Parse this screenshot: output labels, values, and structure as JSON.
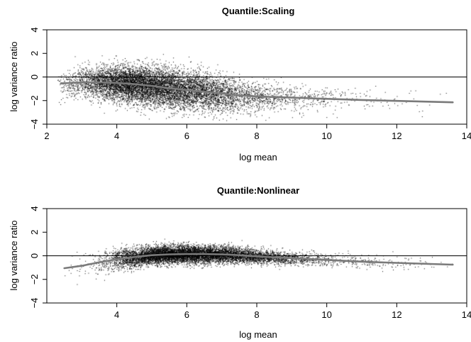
{
  "chart_data": [
    {
      "type": "scatter",
      "title": "Quantile:Scaling",
      "xlabel": "log mean",
      "ylabel": "log variance ratio",
      "xlim": [
        2,
        14
      ],
      "ylim": [
        -4,
        4
      ],
      "xticks": [
        "2",
        "4",
        "6",
        "8",
        "10",
        "12",
        "14"
      ],
      "yticks": [
        "4",
        "2",
        "0",
        "-2",
        "-4"
      ],
      "reference_line_y": 0,
      "point_color": "#000000",
      "trend_color": "#7a7a7a",
      "series": [
        {
          "trend": {
            "x": [
              2.4,
              3.0,
              3.5,
              4.0,
              4.5,
              5.0,
              5.5,
              6.0,
              6.5,
              7.0,
              7.5,
              8.0,
              9.0,
              10.0,
              11.0,
              12.0,
              13.6
            ],
            "y": [
              -0.55,
              -0.45,
              -0.45,
              -0.5,
              -0.6,
              -0.75,
              -0.95,
              -1.1,
              -1.25,
              -1.4,
              -1.55,
              -1.65,
              -1.75,
              -1.85,
              -1.95,
              -2.03,
              -2.15
            ]
          },
          "point_density": {
            "x_range": [
              2.3,
              13.6
            ],
            "peak_x": 4.5,
            "approx_points": 9000,
            "spread_sd": {
              "x": [
                2.4,
                3.0,
                4.0,
                5.0,
                6.0,
                7.0,
                8.0,
                9.0,
                10.0,
                12.0,
                13.6
              ],
              "sd": [
                0.55,
                0.65,
                0.75,
                0.8,
                0.85,
                0.8,
                0.65,
                0.55,
                0.5,
                0.45,
                0.45
              ]
            }
          }
        }
      ]
    },
    {
      "type": "scatter",
      "title": "Quantile:Nonlinear",
      "xlabel": "log mean",
      "ylabel": "log variance ratio",
      "xlim": [
        2,
        14
      ],
      "ylim": [
        -4,
        4
      ],
      "xticks": [
        "4",
        "6",
        "8",
        "10",
        "12",
        "14"
      ],
      "yticks": [
        "4",
        "2",
        "0",
        "-2",
        "-4"
      ],
      "reference_line_y": 0,
      "point_color": "#000000",
      "trend_color": "#7a7a7a",
      "series": [
        {
          "trend": {
            "x": [
              2.5,
              3.0,
              3.5,
              4.0,
              4.5,
              5.0,
              5.5,
              6.0,
              6.5,
              7.0,
              7.5,
              8.0,
              9.0,
              10.0,
              11.0,
              12.0,
              13.6
            ],
            "y": [
              -1.05,
              -0.85,
              -0.55,
              -0.3,
              -0.1,
              0.05,
              0.12,
              0.15,
              0.15,
              0.12,
              0.05,
              -0.05,
              -0.2,
              -0.35,
              -0.5,
              -0.6,
              -0.75
            ]
          },
          "point_density": {
            "x_range": [
              2.5,
              13.6
            ],
            "peak_x": 5.5,
            "approx_points": 9000,
            "spread_sd": {
              "x": [
                2.5,
                3.0,
                4.0,
                5.0,
                6.0,
                7.0,
                8.0,
                9.0,
                10.0,
                12.0,
                13.6
              ],
              "sd": [
                0.7,
                0.6,
                0.45,
                0.38,
                0.38,
                0.35,
                0.3,
                0.28,
                0.28,
                0.3,
                0.3
              ]
            }
          }
        }
      ]
    }
  ]
}
